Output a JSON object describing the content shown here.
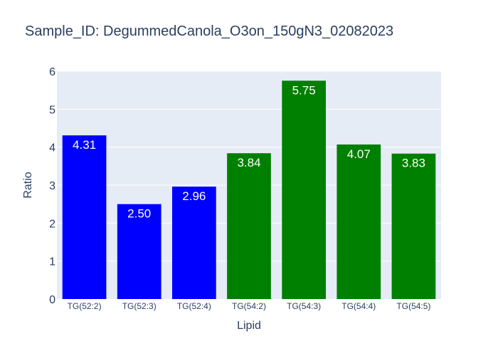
{
  "chart_data": {
    "type": "bar",
    "title": "Sample_ID: DegummedCanola_O3on_150gN3_02082023",
    "xlabel": "Lipid",
    "ylabel": "Ratio",
    "ylim": [
      0,
      6
    ],
    "yticks": [
      "0",
      "1",
      "2",
      "3",
      "4",
      "5",
      "6"
    ],
    "grid": true,
    "categories": [
      "TG(52:2)",
      "TG(52:3)",
      "TG(52:4)",
      "TG(54:2)",
      "TG(54:3)",
      "TG(54:4)",
      "TG(54:5)"
    ],
    "values": [
      4.31,
      2.5,
      2.96,
      3.84,
      5.75,
      4.07,
      3.83
    ],
    "value_labels": [
      "4.31",
      "2.50",
      "2.96",
      "3.84",
      "5.75",
      "4.07",
      "3.83"
    ],
    "bar_colors": [
      "#0000ff",
      "#0000ff",
      "#0000ff",
      "#008000",
      "#008000",
      "#008000",
      "#008000"
    ],
    "plot_background": "#e5ecf6",
    "gridline_color": "#ffffff",
    "text_color": "#2a3f5f"
  }
}
